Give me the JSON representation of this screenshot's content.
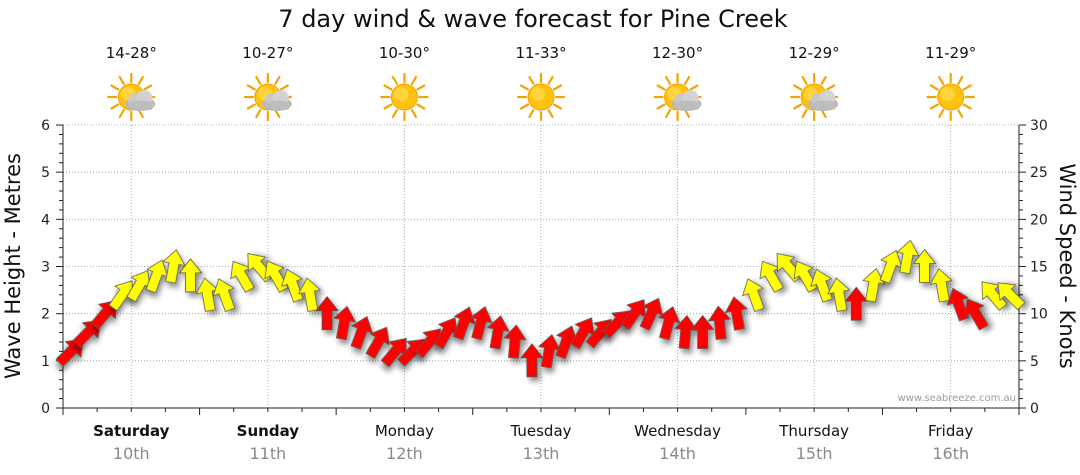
{
  "title": "7 day wind & wave forecast for Pine Creek",
  "watermark": "www.seabreeze.com.au",
  "colors": {
    "strong": "#ff0000",
    "moderate": "#ffff00",
    "outline": "#555555",
    "grid": "#999999"
  },
  "days": [
    {
      "name": "Saturday",
      "date": "10th",
      "temp": "14-28°",
      "icon": "partly-cloudy-icon",
      "bold": true
    },
    {
      "name": "Sunday",
      "date": "11th",
      "temp": "10-27°",
      "icon": "partly-cloudy-icon",
      "bold": true
    },
    {
      "name": "Monday",
      "date": "12th",
      "temp": "10-30°",
      "icon": "sunny-icon",
      "bold": false
    },
    {
      "name": "Tuesday",
      "date": "13th",
      "temp": "11-33°",
      "icon": "sunny-icon",
      "bold": false
    },
    {
      "name": "Wednesday",
      "date": "14th",
      "temp": "12-30°",
      "icon": "partly-cloudy-icon",
      "bold": false
    },
    {
      "name": "Thursday",
      "date": "15th",
      "temp": "12-29°",
      "icon": "partly-cloudy-icon",
      "bold": false
    },
    {
      "name": "Friday",
      "date": "16th",
      "temp": "11-29°",
      "icon": "sunny-icon",
      "bold": false
    }
  ],
  "chart_data": {
    "type": "line",
    "left_axis": {
      "label": "Wave Height - Metres",
      "ylim": [
        0,
        6
      ],
      "ticks": [
        "0",
        "1",
        "2",
        "3",
        "4",
        "5",
        "6"
      ]
    },
    "right_axis": {
      "label": "Wind Speed - Knots",
      "ylim": [
        0,
        30
      ],
      "ticks": [
        "0",
        "5",
        "10",
        "15",
        "20",
        "25",
        "30"
      ]
    },
    "x_hours_per_day": 24,
    "wind_series": {
      "name": "Wind Speed",
      "x_hours": [
        0,
        3,
        6,
        9,
        12,
        15,
        18,
        21,
        24,
        27,
        30,
        33,
        36,
        39,
        42,
        45,
        48,
        51,
        54,
        57,
        60,
        63,
        66,
        69,
        72,
        75,
        78,
        81,
        84,
        87,
        90,
        93,
        96,
        99,
        102,
        105,
        108,
        111,
        114,
        117,
        120,
        123,
        126,
        129,
        132,
        135,
        138,
        141,
        144,
        147,
        150,
        153,
        156,
        159,
        162,
        165
      ],
      "values": [
        6,
        8,
        10,
        12,
        13,
        14,
        15,
        14,
        12,
        12,
        14,
        15,
        14,
        13,
        12,
        10,
        9,
        8,
        7,
        6,
        6,
        7,
        8,
        9,
        9,
        8,
        7,
        5,
        6,
        7,
        8,
        8,
        9,
        10,
        10,
        9,
        8,
        8,
        9,
        10,
        12,
        14,
        15,
        14,
        13,
        12,
        11,
        13,
        15,
        16,
        15,
        13,
        11,
        10,
        12,
        12
      ],
      "direction_deg": [
        225,
        225,
        220,
        215,
        210,
        200,
        190,
        180,
        170,
        160,
        150,
        140,
        150,
        160,
        170,
        180,
        190,
        200,
        210,
        220,
        225,
        220,
        210,
        200,
        195,
        190,
        185,
        180,
        190,
        200,
        210,
        220,
        225,
        215,
        205,
        195,
        185,
        180,
        175,
        170,
        160,
        150,
        140,
        150,
        160,
        170,
        180,
        190,
        200,
        190,
        180,
        170,
        160,
        150,
        140,
        135
      ]
    },
    "wave_series": {
      "name": "Wave Height",
      "values": []
    }
  }
}
